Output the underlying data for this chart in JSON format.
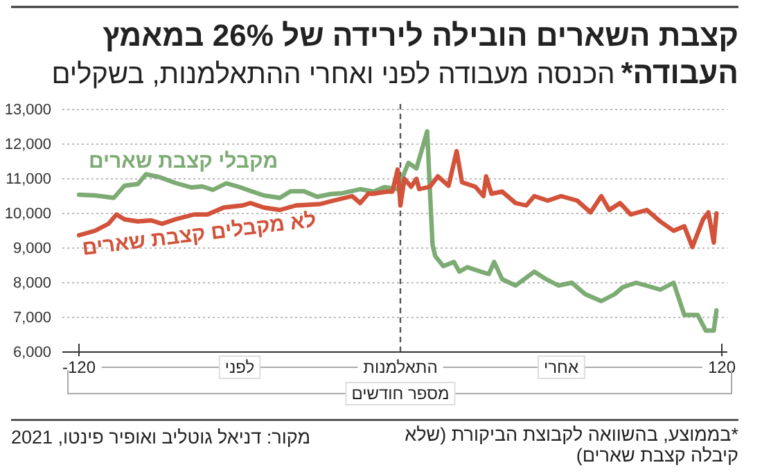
{
  "chart_data": {
    "type": "line",
    "title": "קצבת השארים הובילה לירידה של 26% במאמץ העבודה*",
    "subtitle": "הכנסה מעבודה לפני ואחרי ההתאלמנות, בשקלים",
    "xlabel": "מספר חודשים",
    "xlim": [
      -120,
      120
    ],
    "xticks": [
      {
        "value": -120,
        "label": "-120"
      },
      {
        "value": 0,
        "label": "התאלמנות"
      },
      {
        "value": 120,
        "label": "120"
      }
    ],
    "ylim": [
      6000,
      13000
    ],
    "yticks": [
      {
        "value": 6000,
        "label": "6,000"
      },
      {
        "value": 7000,
        "label": "7,000"
      },
      {
        "value": 8000,
        "label": "8,000"
      },
      {
        "value": 9000,
        "label": "9,000"
      },
      {
        "value": 10000,
        "label": "10,000"
      },
      {
        "value": 11000,
        "label": "11,000"
      },
      {
        "value": 12000,
        "label": "12,000"
      },
      {
        "value": 13000,
        "label": "13,000"
      }
    ],
    "grid": "y",
    "legend": false,
    "marker": "none",
    "ref_lines": [
      {
        "axis": "x",
        "value": 0,
        "line_style": "dashed",
        "color": "#555555"
      }
    ],
    "annotations": [
      "לפני",
      "אחרי",
      "*בממוצע, בהשוואה לקבוצת הביקורת (שלא קיבלה קצבת שארים)",
      "מקור: דניאל גוטליב ואופיר פינטו, 2021"
    ],
    "series": [
      {
        "name": "מקבלי קצבת שארים",
        "color": "#7dab74",
        "x": [
          -120,
          -114,
          -107,
          -103,
          -98,
          -95,
          -90,
          -84,
          -78,
          -74,
          -70,
          -65,
          -60,
          -56,
          -51,
          -45,
          -41,
          -36,
          -31,
          -26,
          -22,
          -15,
          -10,
          -6,
          -1,
          3,
          6,
          10,
          11,
          12,
          13,
          16,
          20,
          22,
          25,
          30,
          33,
          35,
          38,
          43,
          50,
          54,
          59,
          64,
          69,
          75,
          80,
          83,
          88,
          94,
          97,
          102,
          106,
          111,
          114,
          117,
          118
        ],
        "values": [
          10540,
          10520,
          10450,
          10800,
          10850,
          11130,
          11050,
          10880,
          10750,
          10780,
          10680,
          10870,
          10760,
          10650,
          10520,
          10450,
          10640,
          10640,
          10480,
          10560,
          10580,
          10700,
          10630,
          10760,
          10700,
          11460,
          11300,
          12370,
          10700,
          9100,
          8770,
          8480,
          8600,
          8320,
          8450,
          8320,
          8250,
          8600,
          8100,
          7920,
          8320,
          8120,
          7920,
          8000,
          7670,
          7470,
          7670,
          7870,
          8000,
          7870,
          7800,
          8000,
          7070,
          7070,
          6620,
          6620,
          7200
        ]
      },
      {
        "name": "לא מקבלים קצבת שארים",
        "color": "#d2523a",
        "x": [
          -120,
          -114,
          -109,
          -106,
          -103,
          -98,
          -93,
          -89,
          -84,
          -77,
          -72,
          -66,
          -59,
          -56,
          -51,
          -45,
          -39,
          -30,
          -25,
          -18,
          -15,
          -12,
          -10,
          -5,
          -3,
          -1,
          0,
          1.5,
          4,
          6,
          7,
          11,
          14,
          18,
          21,
          23,
          28,
          31,
          32,
          34,
          38,
          43,
          47,
          50,
          55,
          60,
          66,
          71,
          75,
          78,
          82,
          86,
          92,
          97,
          102,
          106,
          109,
          113,
          115,
          117,
          118
        ],
        "values": [
          9370,
          9500,
          9700,
          9970,
          9830,
          9770,
          9800,
          9700,
          9830,
          9970,
          9970,
          10170,
          10230,
          10300,
          10170,
          10100,
          10230,
          10270,
          10370,
          10500,
          10300,
          10570,
          10570,
          10630,
          10630,
          11270,
          10230,
          11000,
          10770,
          11000,
          10700,
          10770,
          11070,
          10800,
          11800,
          10900,
          10770,
          10500,
          11070,
          10570,
          10630,
          10300,
          10230,
          10500,
          10370,
          10500,
          10370,
          10030,
          10500,
          10100,
          10300,
          9970,
          10100,
          9770,
          9500,
          9630,
          9030,
          9830,
          10030,
          9160,
          10000
        ]
      }
    ]
  }
}
